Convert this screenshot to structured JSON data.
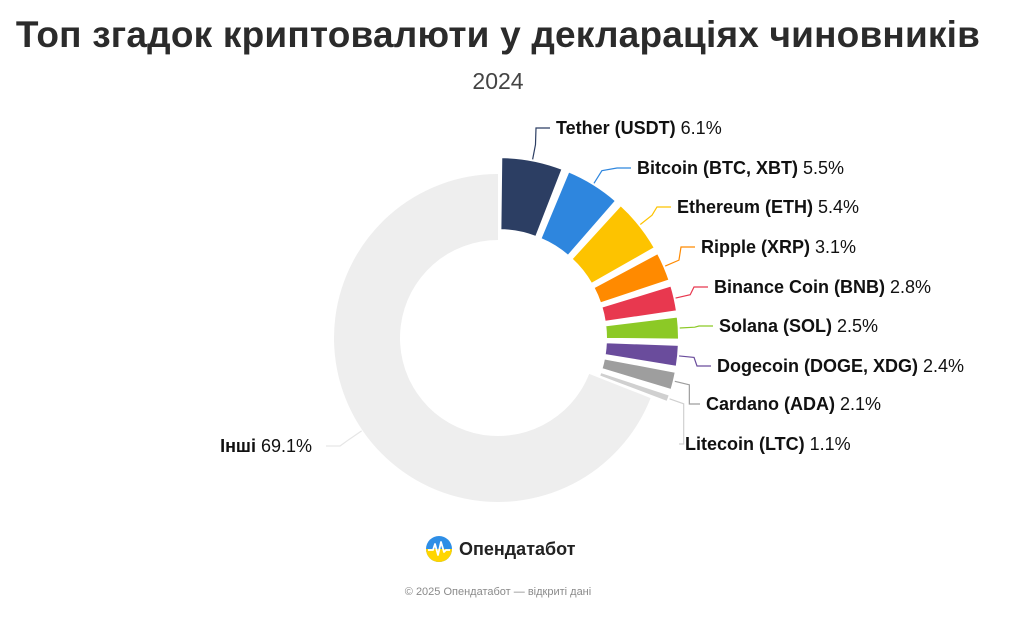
{
  "title": "Топ згадок криптовалюти у деклараціях чиновників",
  "subtitle": "2024",
  "brand": {
    "name": "Опендатабот",
    "colors": [
      "#ffd500",
      "#2e8ee6"
    ]
  },
  "footer": "© 2025 Опендатабот — відкриті дані",
  "chart_data": {
    "type": "pie",
    "donut": true,
    "labels": [
      "Tether (USDT)",
      "Bitcoin (BTC, XBT)",
      "Ethereum (ETH)",
      "Ripple (XRP)",
      "Binance Coin (BNB)",
      "Solana (SOL)",
      "Dogecoin (DOGE, XDG)",
      "Cardano (ADA)",
      "Litecoin (LTC)",
      "Інші"
    ],
    "values": [
      6.1,
      5.5,
      5.4,
      3.1,
      2.8,
      2.5,
      2.4,
      2.1,
      1.1,
      69.1
    ],
    "value_labels": [
      "6.1%",
      "5.5%",
      "5.4%",
      "3.1%",
      "2.8%",
      "2.5%",
      "2.4%",
      "2.1%",
      "1.1%",
      "69.1%"
    ],
    "colors": [
      "#2c3e63",
      "#2e86de",
      "#fdc300",
      "#ff8a00",
      "#e8384f",
      "#8cc926",
      "#6a4c9c",
      "#9e9e9e",
      "#d0d0d0",
      "#eeeeee"
    ],
    "highlighted": [
      true,
      true,
      true,
      true,
      true,
      true,
      true,
      true,
      true,
      false
    ]
  }
}
